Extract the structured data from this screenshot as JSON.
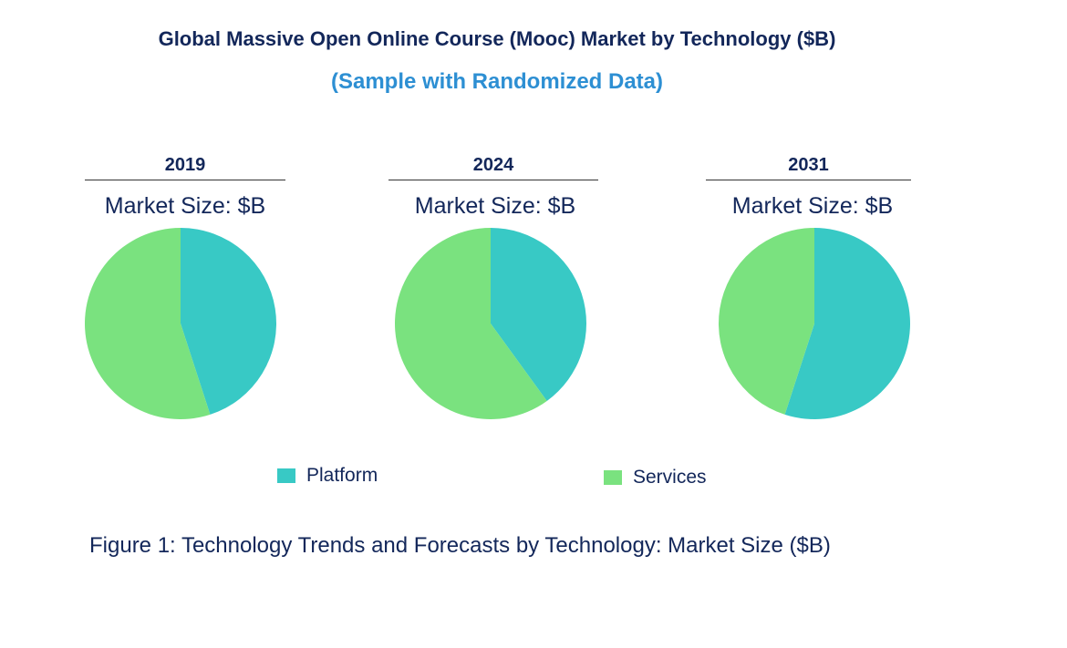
{
  "chart_data": {
    "type": "pie",
    "title": "Global Massive Open Online Course (Mooc) Market by Technology ($B)",
    "subtitle": "(Sample with Randomized Data)",
    "legend": [
      {
        "name": "Platform",
        "color": "#38c9c5"
      },
      {
        "name": "Services",
        "color": "#7ae27f"
      }
    ],
    "legend_placement": "bottom",
    "pies": [
      {
        "year": "2019",
        "label": "Market Size: $B",
        "values": [
          45,
          55
        ]
      },
      {
        "year": "2024",
        "label": "Market Size: $B",
        "values": [
          40,
          60
        ]
      },
      {
        "year": "2031",
        "label": "Market Size: $B",
        "values": [
          55,
          45
        ]
      }
    ],
    "caption": "Figure 1: Technology Trends and Forecasts by Technology: Market Size ($B)"
  }
}
